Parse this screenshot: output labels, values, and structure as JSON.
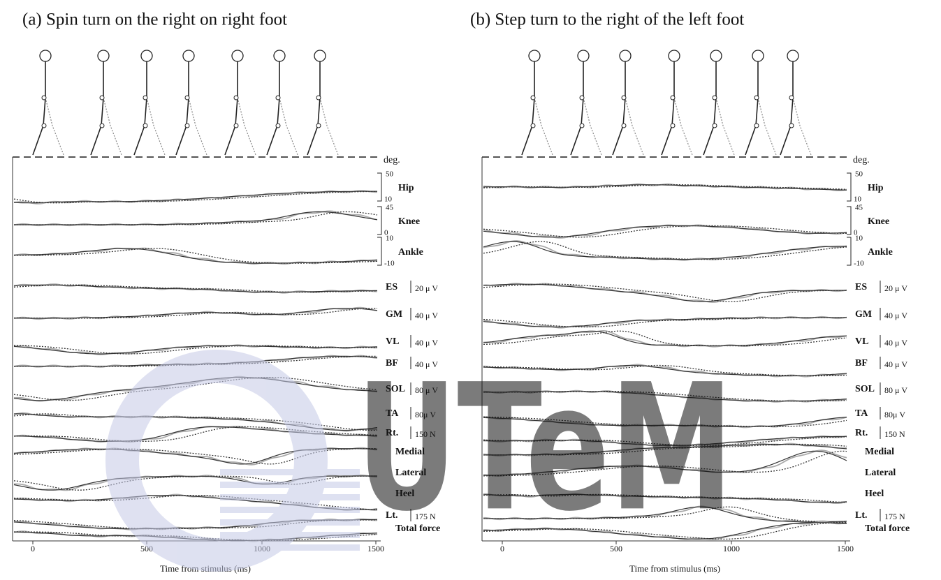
{
  "panels": [
    {
      "caption": "(a)  Spin turn on the right on right foot",
      "unit_label": "deg.",
      "rows": [
        {
          "label": "Hip",
          "scale_top": "50",
          "scale_bottom": "10"
        },
        {
          "label": "Knee",
          "scale_top": "45",
          "scale_bottom": "0"
        },
        {
          "label": "Ankle",
          "scale_top": "10",
          "scale_bottom": "-10"
        },
        {
          "label": "ES",
          "scale": "20 μ V"
        },
        {
          "label": "GM",
          "scale": "40 μ V"
        },
        {
          "label": "VL",
          "scale": "40 μ V"
        },
        {
          "label": "BF",
          "scale": "40 μ V"
        },
        {
          "label": "SOL",
          "scale": "80 μ V"
        },
        {
          "label": "TA",
          "scale": "80μ V"
        },
        {
          "label": "Rt.",
          "scale": "150 N"
        },
        {
          "label": "Medial"
        },
        {
          "label": "Lateral"
        },
        {
          "label": "Heel"
        },
        {
          "label": "Lt.",
          "scale": "175 N"
        },
        {
          "label": "Total force"
        }
      ],
      "x_ticks": [
        "0",
        "500",
        "1000",
        "1500"
      ],
      "x_label": "Time from stimulus (ms)"
    },
    {
      "caption": "(b) Step turn to the right of the left foot",
      "unit_label": "deg.",
      "rows": [
        {
          "label": "Hip",
          "scale_top": "50",
          "scale_bottom": "10"
        },
        {
          "label": "Knee",
          "scale_top": "45",
          "scale_bottom": "0"
        },
        {
          "label": "Ankle",
          "scale_top": "10",
          "scale_bottom": "-10"
        },
        {
          "label": "ES",
          "scale": "20 μ V"
        },
        {
          "label": "GM",
          "scale": "40 μ V"
        },
        {
          "label": "VL",
          "scale": "40 μ V"
        },
        {
          "label": "BF",
          "scale": "40 μ V"
        },
        {
          "label": "SOL",
          "scale": "80 μ V"
        },
        {
          "label": "TA",
          "scale": "80μ V"
        },
        {
          "label": "Rt.",
          "scale": "150 N"
        },
        {
          "label": "Medial"
        },
        {
          "label": "Lateral"
        },
        {
          "label": "Heel"
        },
        {
          "label": "Lt.",
          "scale": "175 N"
        },
        {
          "label": "Total force"
        }
      ],
      "x_ticks": [
        "0",
        "500",
        "1000",
        "1500"
      ],
      "x_label": "Time from stimulus (ms)"
    }
  ],
  "watermark": "UTeM"
}
